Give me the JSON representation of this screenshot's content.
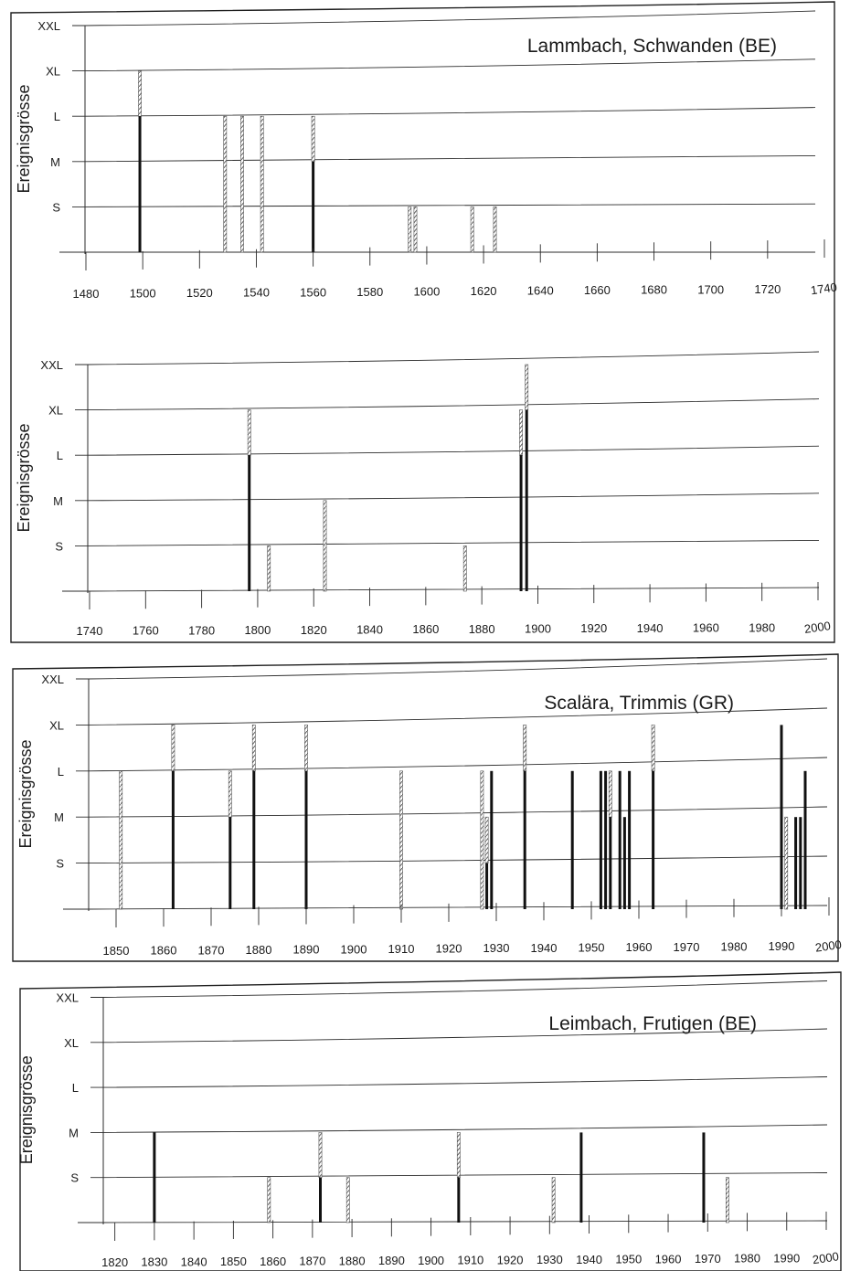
{
  "colors": {
    "frame": "#1e1e1e",
    "grid": "#2b2b2b",
    "text": "#1a1a1a",
    "bar_solid": "#111111",
    "bar_hatch": "#555555",
    "background": "#ffffff"
  },
  "chart_data": [
    {
      "type": "bar",
      "title": "Lammbach, Schwanden (BE)",
      "ylabel": "Ereignisgrösse",
      "xlabel": "",
      "y_categories": [
        "S",
        "M",
        "L",
        "XL",
        "XXL"
      ],
      "x_ticks": [
        1480,
        1500,
        1520,
        1540,
        1560,
        1580,
        1600,
        1620,
        1640,
        1660,
        1680,
        1700,
        1720,
        1740
      ],
      "xlim": [
        1480,
        1740
      ],
      "grid": true,
      "events": [
        {
          "year": 1499,
          "solid": 3,
          "hatched": 4
        },
        {
          "year": 1529,
          "solid": 0,
          "hatched": 3
        },
        {
          "year": 1535,
          "solid": 0,
          "hatched": 3
        },
        {
          "year": 1542,
          "solid": 0,
          "hatched": 3
        },
        {
          "year": 1560,
          "solid": 2,
          "hatched": 3
        },
        {
          "year": 1594,
          "solid": 0,
          "hatched": 1
        },
        {
          "year": 1596,
          "solid": 0,
          "hatched": 1
        },
        {
          "year": 1616,
          "solid": 0,
          "hatched": 1
        },
        {
          "year": 1624,
          "solid": 0,
          "hatched": 1
        }
      ]
    },
    {
      "type": "bar",
      "title": "",
      "ylabel": "Ereignisgrösse",
      "xlabel": "",
      "y_categories": [
        "S",
        "M",
        "L",
        "XL",
        "XXL"
      ],
      "x_ticks": [
        1740,
        1760,
        1780,
        1800,
        1820,
        1840,
        1860,
        1880,
        1900,
        1920,
        1940,
        1960,
        1980,
        2000
      ],
      "xlim": [
        1740,
        2000
      ],
      "grid": true,
      "events": [
        {
          "year": 1797,
          "solid": 3,
          "hatched": 4
        },
        {
          "year": 1804,
          "solid": 0,
          "hatched": 1
        },
        {
          "year": 1824,
          "solid": 0,
          "hatched": 2
        },
        {
          "year": 1874,
          "solid": 0,
          "hatched": 1
        },
        {
          "year": 1894,
          "solid": 3,
          "hatched": 4
        },
        {
          "year": 1896,
          "solid": 4,
          "hatched": 5
        }
      ]
    },
    {
      "type": "bar",
      "title": "Scalära, Trimmis (GR)",
      "ylabel": "Ereignisgrösse",
      "xlabel": "",
      "y_categories": [
        "S",
        "M",
        "L",
        "XL",
        "XXL"
      ],
      "x_ticks": [
        1850,
        1860,
        1870,
        1880,
        1890,
        1900,
        1910,
        1920,
        1930,
        1940,
        1950,
        1960,
        1970,
        1980,
        1990,
        2000
      ],
      "xlim": [
        1845,
        2000
      ],
      "grid": true,
      "events": [
        {
          "year": 1851,
          "solid": 0,
          "hatched": 3
        },
        {
          "year": 1862,
          "solid": 3,
          "hatched": 4
        },
        {
          "year": 1874,
          "solid": 2,
          "hatched": 3
        },
        {
          "year": 1879,
          "solid": 3,
          "hatched": 4
        },
        {
          "year": 1890,
          "solid": 3,
          "hatched": 4
        },
        {
          "year": 1910,
          "solid": 0,
          "hatched": 3
        },
        {
          "year": 1927,
          "solid": 0,
          "hatched": 3
        },
        {
          "year": 1928,
          "solid": 1,
          "hatched": 2
        },
        {
          "year": 1929,
          "solid": 3,
          "hatched": 3
        },
        {
          "year": 1936,
          "solid": 3,
          "hatched": 4
        },
        {
          "year": 1946,
          "solid": 3,
          "hatched": 3
        },
        {
          "year": 1952,
          "solid": 3,
          "hatched": 3
        },
        {
          "year": 1953,
          "solid": 3,
          "hatched": 3
        },
        {
          "year": 1954,
          "solid": 2,
          "hatched": 3
        },
        {
          "year": 1956,
          "solid": 3,
          "hatched": 3
        },
        {
          "year": 1957,
          "solid": 2,
          "hatched": 2
        },
        {
          "year": 1958,
          "solid": 3,
          "hatched": 3
        },
        {
          "year": 1963,
          "solid": 3,
          "hatched": 4
        },
        {
          "year": 1990,
          "solid": 4,
          "hatched": 4
        },
        {
          "year": 1991,
          "solid": 0,
          "hatched": 2
        },
        {
          "year": 1993,
          "solid": 2,
          "hatched": 2
        },
        {
          "year": 1994,
          "solid": 2,
          "hatched": 2
        },
        {
          "year": 1995,
          "solid": 3,
          "hatched": 3
        }
      ]
    },
    {
      "type": "bar",
      "title": "Leimbach, Frutigen (BE)",
      "ylabel": "Ereignisgrösse",
      "xlabel": "",
      "y_categories": [
        "S",
        "M",
        "L",
        "XL",
        "XXL"
      ],
      "x_ticks": [
        1820,
        1830,
        1840,
        1850,
        1860,
        1870,
        1880,
        1890,
        1900,
        1910,
        1920,
        1930,
        1940,
        1950,
        1960,
        1970,
        1980,
        1990,
        2000
      ],
      "xlim": [
        1818,
        2000
      ],
      "grid": true,
      "events": [
        {
          "year": 1830,
          "solid": 2,
          "hatched": 2
        },
        {
          "year": 1859,
          "solid": 0,
          "hatched": 1
        },
        {
          "year": 1872,
          "solid": 1,
          "hatched": 2
        },
        {
          "year": 1879,
          "solid": 0,
          "hatched": 1
        },
        {
          "year": 1907,
          "solid": 1,
          "hatched": 2
        },
        {
          "year": 1931,
          "solid": 0,
          "hatched": 1
        },
        {
          "year": 1938,
          "solid": 2,
          "hatched": 2
        },
        {
          "year": 1969,
          "solid": 2,
          "hatched": 2
        },
        {
          "year": 1975,
          "solid": 0,
          "hatched": 1
        }
      ]
    }
  ]
}
